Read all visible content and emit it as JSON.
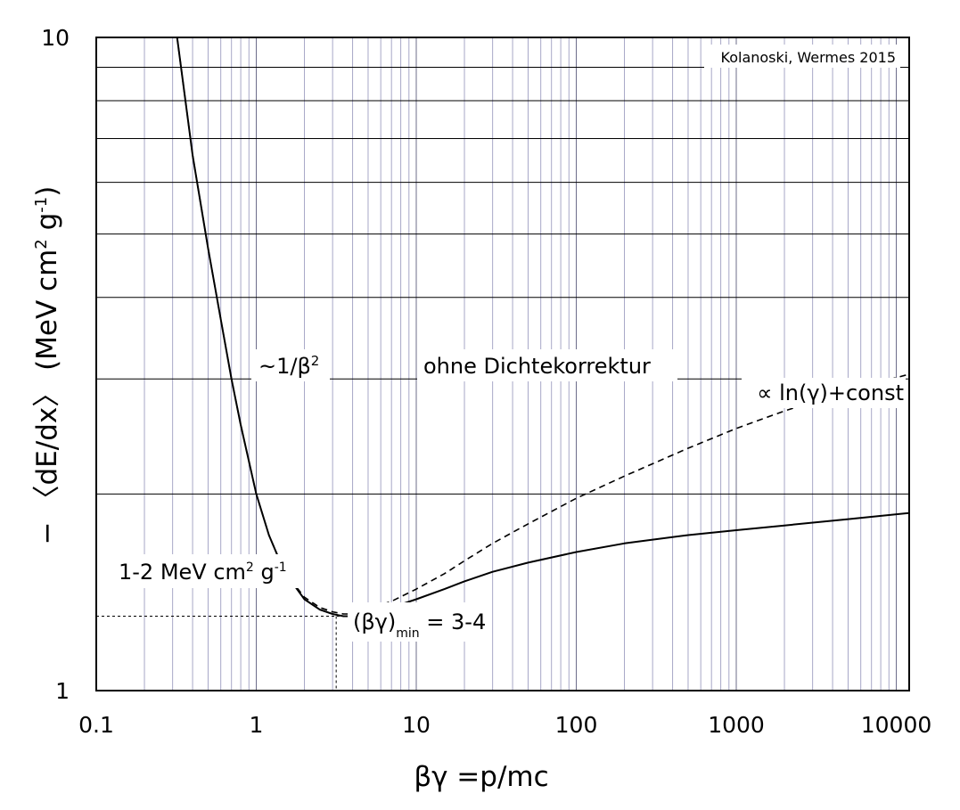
{
  "chart_data": {
    "type": "line",
    "xscale": "log",
    "yscale": "log",
    "xlim": [
      0.1,
      12000
    ],
    "ylim": [
      1,
      10
    ],
    "grid": true,
    "xlabel": "βγ =p/mc",
    "ylabel_parts": {
      "prefix": "− 〈dE/dx〉  (MeV cm",
      "sup1": "2",
      "mid": " g",
      "sup2": "-1",
      "suffix": ")"
    },
    "x_ticks": [
      "0.1",
      "1",
      "10",
      "100",
      "1000",
      "10000"
    ],
    "y_ticks": [
      "1",
      "10"
    ],
    "credit": "Kolanoski, Wermes 2015",
    "series": [
      {
        "style": "solid",
        "x": [
          0.32,
          0.4,
          0.5,
          0.6,
          0.7,
          0.8,
          1.0,
          1.2,
          1.5,
          2.0,
          2.5,
          3.0,
          3.5,
          4,
          5,
          7,
          10,
          15,
          20,
          30,
          50,
          100,
          200,
          500,
          1000,
          2000,
          5000,
          12000
        ],
        "y": [
          10.0,
          6.6,
          4.75,
          3.7,
          3.0,
          2.55,
          2.0,
          1.73,
          1.52,
          1.38,
          1.33,
          1.31,
          1.3,
          1.3,
          1.31,
          1.34,
          1.38,
          1.43,
          1.47,
          1.52,
          1.57,
          1.63,
          1.68,
          1.73,
          1.76,
          1.79,
          1.83,
          1.87
        ]
      },
      {
        "style": "dashed",
        "x": [
          0.32,
          0.4,
          0.5,
          0.6,
          0.7,
          0.8,
          1.0,
          1.2,
          1.5,
          2.0,
          2.5,
          3.0,
          3.5,
          4,
          5,
          7,
          10,
          15,
          20,
          30,
          50,
          100,
          200,
          500,
          1000,
          2000,
          5000,
          12000
        ],
        "y": [
          10.0,
          6.6,
          4.75,
          3.7,
          3.0,
          2.55,
          2.0,
          1.73,
          1.52,
          1.39,
          1.34,
          1.32,
          1.31,
          1.31,
          1.33,
          1.37,
          1.43,
          1.51,
          1.58,
          1.68,
          1.8,
          1.97,
          2.13,
          2.35,
          2.52,
          2.68,
          2.88,
          3.05
        ]
      }
    ],
    "annotations": {
      "beta_label": {
        "main": "~1/β",
        "sup": "2"
      },
      "ohne": "ohne Dichtekorrektur",
      "ln": "∝ ln(γ)+const",
      "min_value": {
        "a": "1-2 MeV cm",
        "sup1": "2",
        "b": " g",
        "sup2": "-1"
      },
      "bg_min": {
        "a": "(βγ)",
        "sub": "min",
        "b": " = 3-4"
      }
    }
  }
}
